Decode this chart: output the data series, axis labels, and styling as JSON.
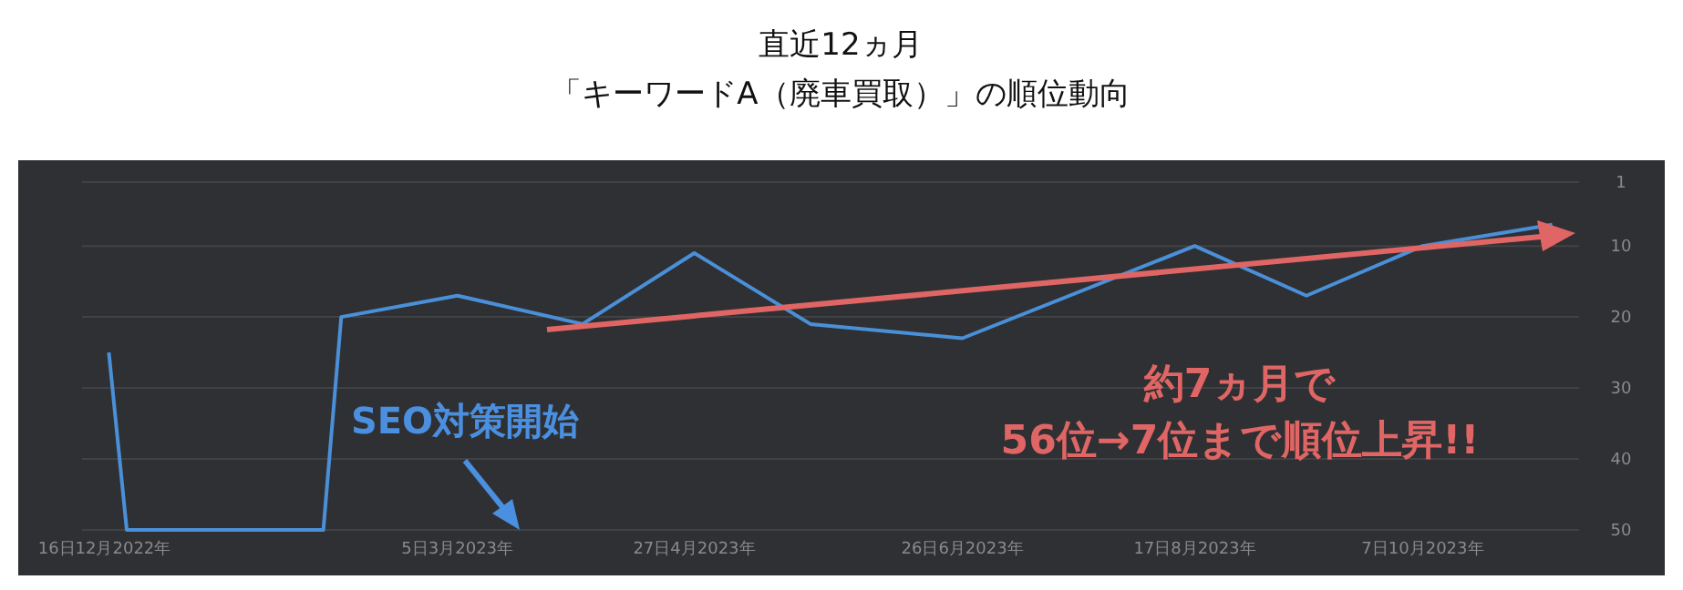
{
  "chart_data": {
    "type": "line",
    "title": "直近12ヵ月",
    "subtitle": "「キーワードA（廃車買取）」の順位動向",
    "x": [
      "2022-12-17",
      "2022-12-21",
      "2023-02-03",
      "2023-02-07",
      "2023-03-05",
      "2023-04-02",
      "2023-04-27",
      "2023-05-23",
      "2023-06-26",
      "2023-08-17",
      "2023-09-11",
      "2023-10-07",
      "2023-11-05"
    ],
    "series": [
      {
        "color": "#4a90d9",
        "values": [
          25,
          50,
          50,
          20,
          17,
          21,
          11,
          21,
          23,
          10,
          17,
          10,
          7
        ]
      }
    ],
    "xlim": [
      "2022-12-11",
      "2023-11-11"
    ],
    "xticks": [
      {
        "value": "2022-12-16",
        "label": "16日12月2022年"
      },
      {
        "value": "2023-03-05",
        "label": "5日3月2023年"
      },
      {
        "value": "2023-04-27",
        "label": "27日4月2023年"
      },
      {
        "value": "2023-06-26",
        "label": "26日6月2023年"
      },
      {
        "value": "2023-08-17",
        "label": "17日8月2023年"
      },
      {
        "value": "2023-10-07",
        "label": "7日10月2023年"
      }
    ],
    "ylim": [
      50,
      1
    ],
    "yticks": [
      1,
      10,
      20,
      30,
      40,
      50
    ],
    "grid": "y",
    "annotations": [
      "SEO対策開始",
      "約7ヵ月で\n56位→7位まで順位上昇!!"
    ]
  }
}
